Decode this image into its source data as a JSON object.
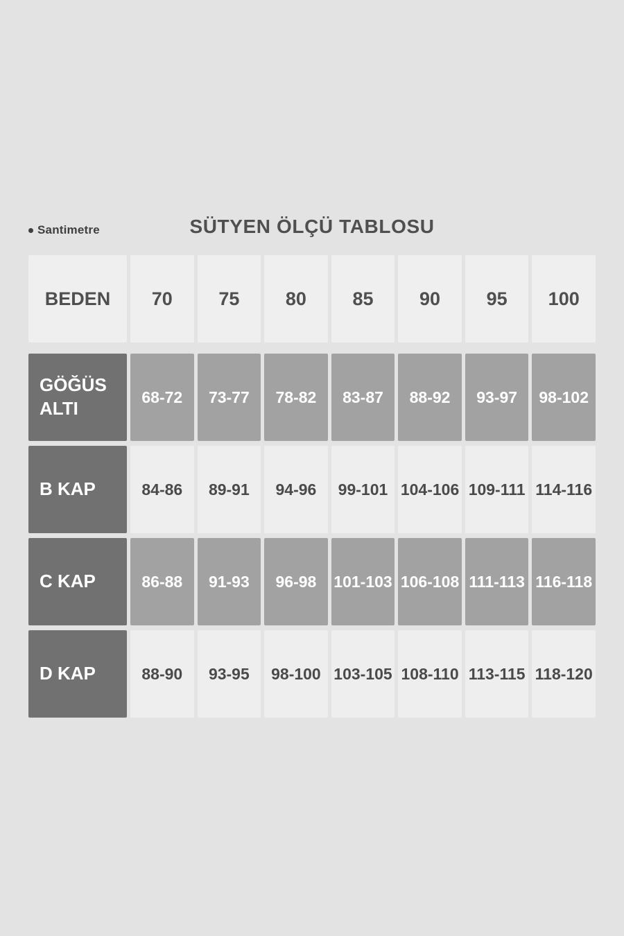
{
  "page": {
    "unit_label": "Santimetre",
    "title": "SÜTYEN ÖLÇÜ TABLOSU"
  },
  "colors": {
    "background": "#e3e3e3",
    "header_cell": "#efefef",
    "label_cell_dark": "#717171",
    "data_cell_medium": "#a2a2a2",
    "data_cell_light": "#eeeeee",
    "text_dark": "#4a4a4a",
    "text_white": "#ffffff"
  },
  "chart_data": {
    "type": "table",
    "title": "SÜTYEN ÖLÇÜ TABLOSU",
    "unit_note": "Santimetre",
    "columns": [
      "BEDEN",
      "70",
      "75",
      "80",
      "85",
      "90",
      "95",
      "100"
    ],
    "rows": [
      {
        "label": "GÖĞÜS ALTI",
        "values": [
          "68-72",
          "73-77",
          "78-82",
          "83-87",
          "88-92",
          "93-97",
          "98-102"
        ]
      },
      {
        "label": "B KAP",
        "values": [
          "84-86",
          "89-91",
          "94-96",
          "99-101",
          "104-106",
          "109-111",
          "114-116"
        ]
      },
      {
        "label": "C KAP",
        "values": [
          "86-88",
          "91-93",
          "96-98",
          "101-103",
          "106-108",
          "111-113",
          "116-118"
        ]
      },
      {
        "label": "D KAP",
        "values": [
          "88-90",
          "93-95",
          "98-100",
          "103-105",
          "108-110",
          "113-115",
          "118-120"
        ]
      }
    ]
  }
}
